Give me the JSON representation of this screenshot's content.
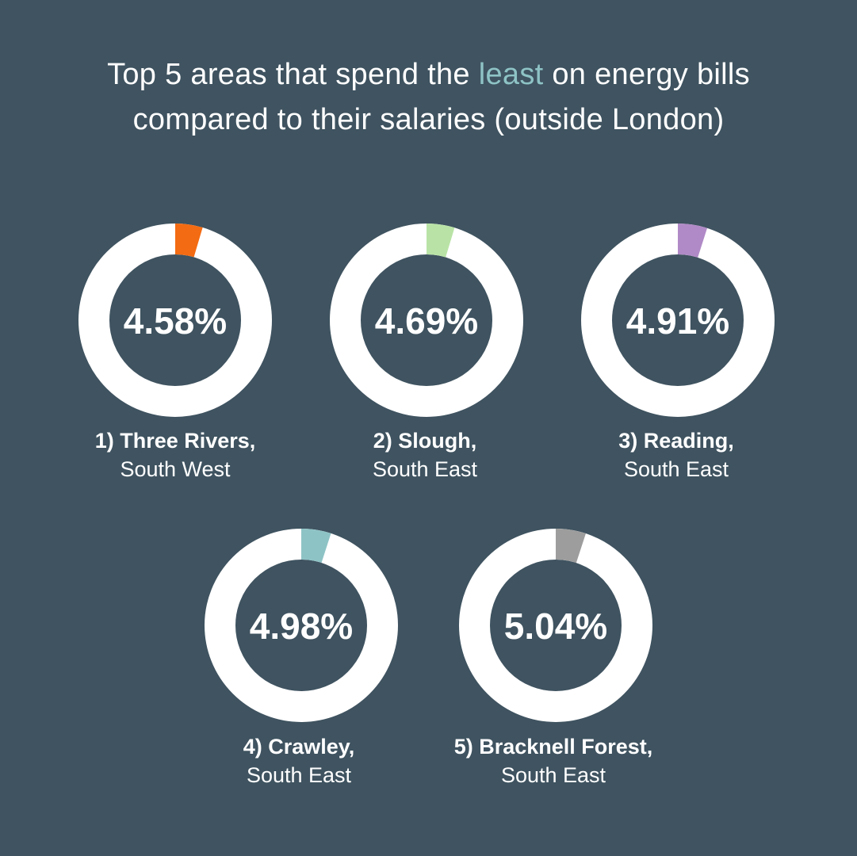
{
  "title": {
    "before": "Top 5 areas that spend the ",
    "highlight": "least",
    "after_line1": " on energy bills",
    "line2": "compared to their salaries (outside London)"
  },
  "colors": {
    "background": "#3f5360",
    "ring": "#ffffff",
    "highlight_text": "#8ec3c5"
  },
  "chart_data": {
    "type": "pie",
    "title": "Top 5 areas that spend the least on energy bills compared to their salaries (outside London)",
    "unit": "%",
    "items": [
      {
        "rank": "1)",
        "area": "Three Rivers,",
        "region": "South West",
        "value": 4.58,
        "label": "4.58%",
        "color": "#f36b12"
      },
      {
        "rank": "2)",
        "area": "Slough,",
        "region": "South East",
        "value": 4.69,
        "label": "4.69%",
        "color": "#b9e3a6"
      },
      {
        "rank": "3)",
        "area": "Reading,",
        "region": "South East",
        "value": 4.91,
        "label": "4.91%",
        "color": "#b08ac6"
      },
      {
        "rank": "4)",
        "area": "Crawley,",
        "region": "South East",
        "value": 4.98,
        "label": "4.98%",
        "color": "#8ec3c5"
      },
      {
        "rank": "5)",
        "area": "Bracknell Forest,",
        "region": "South East",
        "value": 5.04,
        "label": "5.04%",
        "color": "#9d9d9d"
      }
    ]
  }
}
